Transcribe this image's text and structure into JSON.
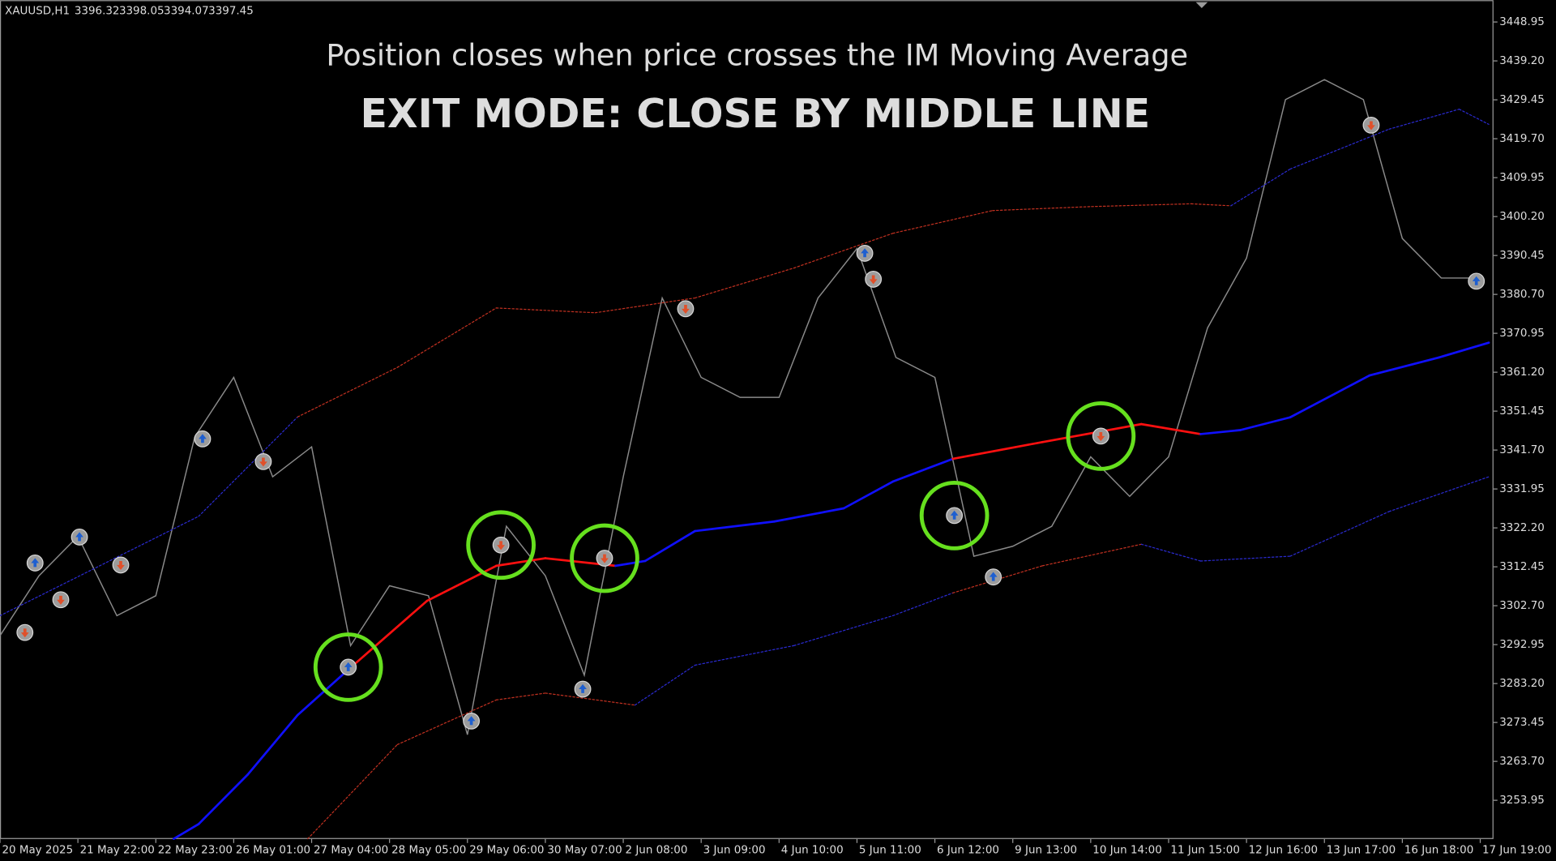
{
  "chart_data": {
    "type": "line",
    "header": {
      "symbol": "XAUUSD,H1",
      "ohlc": [
        3396.32,
        3398.05,
        3394.07,
        3397.45
      ]
    },
    "title": "Position closes when price crosses the IM Moving Average",
    "title_color": "#e53935",
    "subtitle": "EXIT MODE: CLOSE BY MIDDLE LINE",
    "subtitle_color": "#66e01e",
    "categories": [
      "20 May 2025",
      "21 May 22:00",
      "22 May 23:00",
      "26 May 01:00",
      "27 May 04:00",
      "28 May 05:00",
      "29 May 06:00",
      "30 May 07:00",
      "2 Jun 08:00",
      "3 Jun 09:00",
      "4 Jun 10:00",
      "5 Jun 11:00",
      "6 Jun 12:00",
      "9 Jun 13:00",
      "10 Jun 14:00",
      "11 Jun 15:00",
      "12 Jun 16:00",
      "13 Jun 17:00",
      "16 Jun 18:00",
      "17 Jun 19:00"
    ],
    "xlim": [
      0,
      19.17
    ],
    "ylim": [
      3244.25,
      3454.42
    ],
    "yticks": [
      3448.95,
      {
        "value": 3439.2,
        "label": "3439.20"
      },
      3429.45,
      {
        "value": 3419.7,
        "label": "3419.70"
      },
      3409.95,
      {
        "value": 3400.2,
        "label": "3400.20"
      },
      3390.45,
      {
        "value": 3380.7,
        "label": "3380.70"
      },
      3370.95,
      {
        "value": 3361.2,
        "label": "3361.20"
      },
      3351.45,
      {
        "value": 3341.7,
        "label": "3341.70"
      },
      3331.95,
      {
        "value": 3322.2,
        "label": "3322.20"
      },
      3312.45,
      {
        "value": 3302.7,
        "label": "3302.70"
      },
      3292.95,
      {
        "value": 3283.2,
        "label": "3283.20"
      },
      3273.45,
      {
        "value": 3263.7,
        "label": "3263.70"
      },
      3253.95
    ],
    "series": [
      {
        "style": "price",
        "color": "#8a8a8a",
        "x": [
          0,
          0.5,
          1,
          1.5,
          2,
          2.5,
          3,
          3.5,
          4,
          4.5,
          5,
          5.5,
          6,
          6.5,
          7,
          7.5,
          8,
          8.5,
          9,
          9.5,
          10,
          10.5,
          11,
          11.5,
          12,
          12.5,
          13,
          13.5,
          14,
          14.5,
          15,
          15.5,
          16,
          16.5,
          17,
          17.5,
          18,
          18.5,
          19
        ],
        "values": [
          3295.2,
          3310.2,
          3320.1,
          3300.2,
          3305.2,
          3345.0,
          3359.9,
          3335.0,
          3342.5,
          3292.7,
          3307.7,
          3305.2,
          3270.4,
          3322.6,
          3310.2,
          3285.3,
          3335.0,
          3379.8,
          3359.9,
          3354.9,
          3354.9,
          3379.8,
          3392.2,
          3364.9,
          3359.9,
          3315.1,
          3317.6,
          3322.6,
          3340.0,
          3330.1,
          3340.0,
          3372.3,
          3389.8,
          3429.5,
          3434.5,
          3429.5,
          3394.7,
          3384.8,
          3384.8
        ]
      },
      {
        "style": "middle",
        "x": [
          2.23,
          2.55,
          3.18,
          3.82,
          4.46,
          5.48,
          6.37,
          7.0,
          7.9,
          8.28,
          8.92,
          9.94,
          10.83,
          11.46,
          12.23,
          13.38,
          14.65,
          15.41,
          15.92,
          16.56,
          17.58,
          18.47,
          19.11
        ],
        "values": [
          3244.3,
          3248.0,
          3260.4,
          3275.3,
          3286.5,
          3303.9,
          3312.7,
          3314.6,
          3312.7,
          3313.9,
          3321.4,
          3323.8,
          3327.1,
          3333.8,
          3339.5,
          3343.7,
          3348.2,
          3345.7,
          3346.7,
          3349.9,
          3360.4,
          3364.9,
          3368.6
        ],
        "colors": [
          "#1010ff",
          "#1010ff",
          "#1010ff",
          "#1010ff",
          "#1010ff",
          "#ff1010",
          "#ff1010",
          "#ff1010",
          "#ff1010",
          "#1010ff",
          "#1010ff",
          "#1010ff",
          "#1010ff",
          "#1010ff",
          "#1010ff",
          "#ff1010",
          "#ff1010",
          "#ff1010",
          "#1010ff",
          "#1010ff",
          "#1010ff",
          "#1010ff",
          "#1010ff"
        ]
      },
      {
        "style": "band",
        "x": [
          0,
          2.55,
          3.82,
          5.1,
          6.37,
          7.64,
          8.92,
          10.19,
          11.46,
          12.74,
          14.01,
          15.29,
          15.8,
          16.56,
          17.83,
          18.73,
          19.11
        ],
        "values": [
          3300.2,
          3325.1,
          3350.0,
          3362.4,
          3377.3,
          3376.1,
          3379.8,
          3387.3,
          3396.0,
          3401.7,
          3402.7,
          3403.4,
          3402.9,
          3412.1,
          3422.1,
          3427.1,
          3423.3
        ],
        "colors": [
          "#2a2ad0",
          "#2a2ad0",
          "#2a2ad0",
          "#c03020",
          "#c03020",
          "#c03020",
          "#c03020",
          "#c03020",
          "#c03020",
          "#c03020",
          "#c03020",
          "#c03020",
          "#c03020",
          "#2a2ad0",
          "#2a2ad0",
          "#2a2ad0",
          "#2a2ad0"
        ]
      },
      {
        "style": "band",
        "x": [
          3.95,
          5.1,
          6.37,
          7.0,
          8.15,
          8.92,
          10.19,
          11.46,
          12.23,
          13.38,
          14.65,
          15.41,
          16.56,
          17.83,
          19.11
        ],
        "values": [
          3244.3,
          3267.9,
          3279.1,
          3280.8,
          3277.8,
          3287.8,
          3292.7,
          3300.2,
          3305.9,
          3312.7,
          3318.1,
          3313.9,
          3315.1,
          3326.3,
          3335.0
        ],
        "colors": [
          "#c03020",
          "#c03020",
          "#c03020",
          "#c03020",
          "#c03020",
          "#2a2ad0",
          "#2a2ad0",
          "#2a2ad0",
          "#2a2ad0",
          "#c03020",
          "#c03020",
          "#2a2ad0",
          "#2a2ad0",
          "#2a2ad0",
          "#2a2ad0"
        ]
      }
    ],
    "markers": {
      "x": [
        0.32,
        0.45,
        0.78,
        1.02,
        1.55,
        2.6,
        3.38,
        4.47,
        6.05,
        6.43,
        7.48,
        7.76,
        8.8,
        11.1,
        11.21,
        12.25,
        12.75,
        14.13,
        17.6,
        18.95
      ],
      "values": [
        3296.0,
        3313.4,
        3304.2,
        3319.9,
        3312.9,
        3344.5,
        3338.8,
        3287.3,
        3273.8,
        3317.9,
        3281.8,
        3314.6,
        3377.1,
        3391.0,
        3384.5,
        3325.3,
        3309.9,
        3345.2,
        3423.1,
        3384.0
      ],
      "direction": [
        "sell",
        "buy",
        "sell",
        "buy",
        "sell",
        "buy",
        "sell",
        "buy",
        "buy",
        "sell",
        "buy",
        "sell",
        "sell",
        "buy",
        "sell",
        "buy",
        "buy",
        "sell",
        "sell",
        "buy"
      ],
      "highlight": [
        7,
        9,
        11,
        15,
        17
      ]
    }
  }
}
